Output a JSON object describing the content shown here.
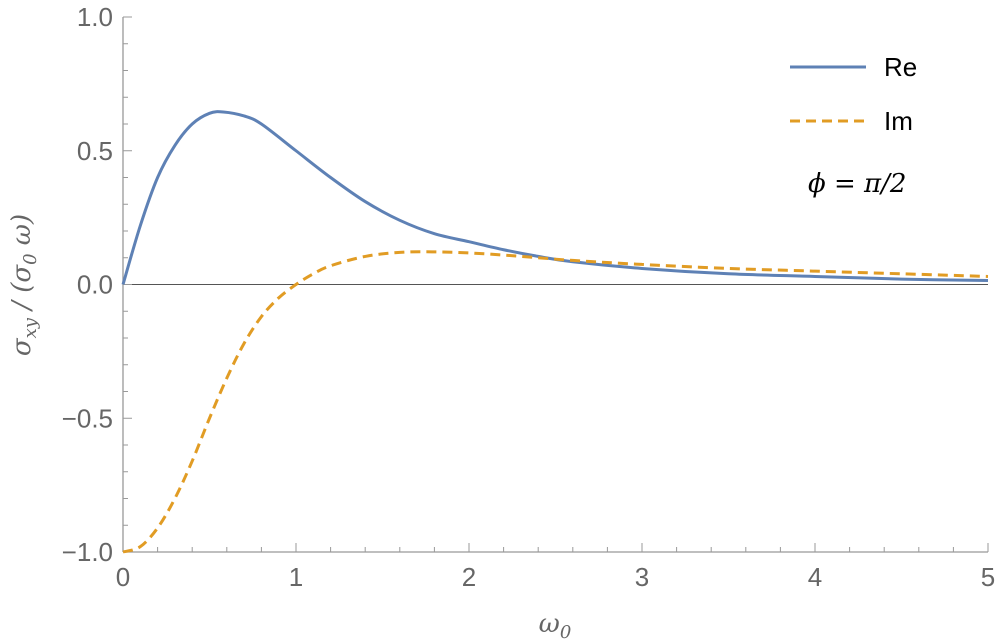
{
  "chart_data": {
    "type": "line",
    "title": "",
    "xlabel": {
      "main": "ω",
      "sub": "0"
    },
    "ylabel": {
      "p1": "σ",
      "s1": "xy",
      "p2": " / (σ",
      "s2": "0",
      "p3": " ω)"
    },
    "xlim": [
      0,
      5
    ],
    "ylim": [
      -1.0,
      1.0
    ],
    "x_ticks": [
      "0",
      "1",
      "2",
      "3",
      "4",
      "5"
    ],
    "y_ticks": [
      "−1.0",
      "−0.5",
      "0.0",
      "0.5",
      "1.0"
    ],
    "grid": false,
    "legend_position": "top-right",
    "annotation": "ϕ = π/2",
    "series": [
      {
        "name": "Re",
        "color": "#5E81B5",
        "dash": "solid",
        "x": [
          0,
          0.1,
          0.2,
          0.3,
          0.4,
          0.5,
          0.58,
          0.7,
          0.8,
          1.0,
          1.2,
          1.4,
          1.6,
          1.8,
          2.0,
          2.2,
          2.4,
          2.6,
          3.0,
          3.5,
          4.0,
          4.5,
          5.0
        ],
        "values": [
          0,
          0.22,
          0.4,
          0.52,
          0.6,
          0.64,
          0.645,
          0.63,
          0.6,
          0.5,
          0.4,
          0.31,
          0.24,
          0.19,
          0.16,
          0.13,
          0.105,
          0.085,
          0.06,
          0.04,
          0.03,
          0.02,
          0.015
        ]
      },
      {
        "name": "Im",
        "color": "#E19C24",
        "dash": "dashed",
        "x": [
          0,
          0.1,
          0.2,
          0.3,
          0.4,
          0.5,
          0.6,
          0.7,
          0.8,
          0.9,
          1.0,
          1.1,
          1.2,
          1.4,
          1.6,
          1.8,
          2.0,
          2.2,
          2.4,
          2.6,
          3.0,
          3.5,
          4.0,
          4.5,
          5.0
        ],
        "values": [
          -1.0,
          -0.98,
          -0.91,
          -0.8,
          -0.66,
          -0.5,
          -0.35,
          -0.22,
          -0.12,
          -0.05,
          0.0,
          0.04,
          0.07,
          0.105,
          0.12,
          0.122,
          0.118,
          0.11,
          0.1,
          0.09,
          0.075,
          0.06,
          0.05,
          0.04,
          0.03
        ]
      }
    ]
  }
}
